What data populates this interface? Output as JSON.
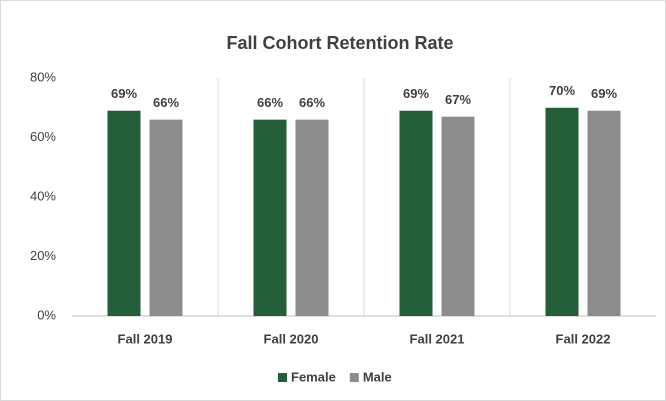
{
  "chart_data": {
    "type": "bar",
    "title": "Fall Cohort Retention Rate",
    "categories": [
      "Fall 2019",
      "Fall 2020",
      "Fall 2021",
      "Fall 2022"
    ],
    "series": [
      {
        "name": "Female",
        "color": "#245e39",
        "values": [
          69,
          66,
          69,
          70
        ],
        "value_labels": [
          "69%",
          "66%",
          "69%",
          "70%"
        ]
      },
      {
        "name": "Male",
        "color": "#8c8c8c",
        "values": [
          66,
          66,
          67,
          69
        ],
        "value_labels": [
          "66%",
          "66%",
          "67%",
          "69%"
        ]
      }
    ],
    "ylim": [
      0,
      80
    ],
    "yticks": [
      {
        "value": 0,
        "label": "0%"
      },
      {
        "value": 20,
        "label": "20%"
      },
      {
        "value": 40,
        "label": "40%"
      },
      {
        "value": 60,
        "label": "60%"
      },
      {
        "value": 80,
        "label": "80%"
      }
    ],
    "legend": "bottom"
  }
}
